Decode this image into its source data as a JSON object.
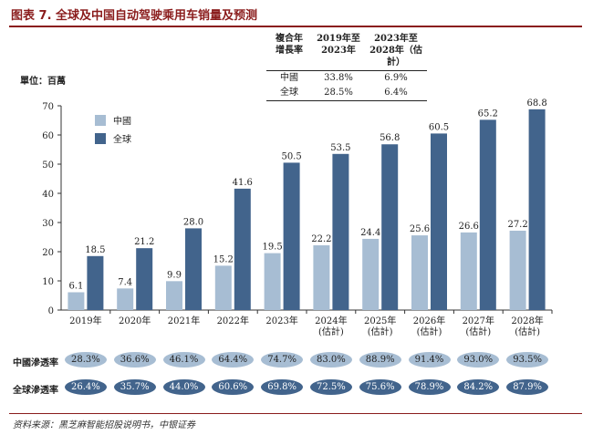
{
  "title": "图表 7. 全球及中国自动驾驶乘用车销量及预测",
  "cagr_table": {
    "headers": [
      "複合年\n增長率",
      "2019年至\n2023年",
      "2023年至\n2028年（估計）"
    ],
    "rows": [
      {
        "region": "中國",
        "v1": "33.8%",
        "v2": "6.9%"
      },
      {
        "region": "全球",
        "v1": "28.5%",
        "v2": "6.4%"
      }
    ]
  },
  "unit_label": "單位：百萬",
  "chart_data": {
    "type": "bar",
    "categories": [
      "2019年",
      "2020年",
      "2021年",
      "2022年",
      "2023年",
      "2024年\n(估計)",
      "2025年\n(估計)",
      "2026年\n(估計)",
      "2027年\n(估計)",
      "2028年\n(估計)"
    ],
    "series": [
      {
        "name": "中國",
        "color": "#a7bdd3",
        "values": [
          6.1,
          7.4,
          9.9,
          15.2,
          19.5,
          22.2,
          24.4,
          25.6,
          26.6,
          27.2
        ]
      },
      {
        "name": "全球",
        "color": "#42648c",
        "values": [
          18.5,
          21.2,
          28.0,
          41.6,
          50.5,
          53.5,
          56.8,
          60.5,
          65.2,
          68.8
        ]
      }
    ],
    "value_labels": {
      "中國": [
        "6.1",
        "7.4",
        "9.9",
        "15.2",
        "19.5",
        "22.2",
        "24.4",
        "25.6",
        "26.6",
        "27.2"
      ],
      "全球": [
        "18.5",
        "21.2",
        "28.0",
        "41.6",
        "50.5",
        "53.5",
        "56.8",
        "60.5",
        "65.2",
        "68.8"
      ]
    },
    "ylim": [
      0,
      70
    ],
    "yticks": [
      0,
      10,
      20,
      30,
      40,
      50,
      60,
      70
    ],
    "legend_position": "top-left",
    "ylabel": "",
    "xlabel": ""
  },
  "penetration": {
    "china_label": "中國滲透率",
    "global_label": "全球滲透率",
    "china": [
      "28.3%",
      "36.6%",
      "46.1%",
      "64.4%",
      "74.7%",
      "83.0%",
      "88.9%",
      "91.4%",
      "93.0%",
      "93.5%"
    ],
    "global": [
      "26.4%",
      "35.7%",
      "44.0%",
      "60.6%",
      "69.8%",
      "72.5%",
      "75.6%",
      "78.9%",
      "84.2%",
      "87.9%"
    ]
  },
  "source": "资料来源：黑芝麻智能招股说明书，中银证券"
}
